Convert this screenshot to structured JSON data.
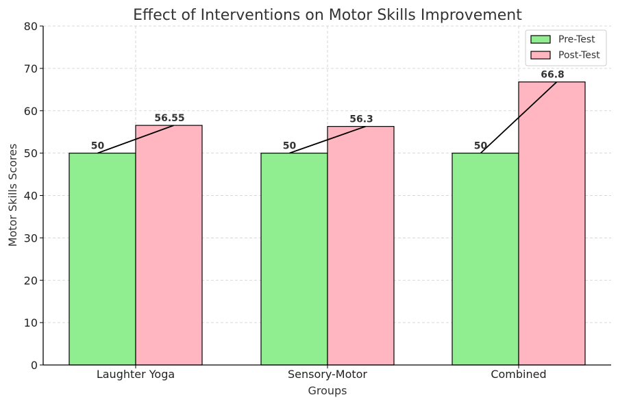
{
  "chart_data": {
    "type": "bar",
    "title": "Effect of Interventions on Motor Skills Improvement",
    "xlabel": "Groups",
    "ylabel": "Motor Skills Scores",
    "categories": [
      "Laughter Yoga",
      "Sensory-Motor",
      "Combined"
    ],
    "series": [
      {
        "name": "Pre-Test",
        "values": [
          50,
          50,
          50
        ],
        "color": "#90EE90"
      },
      {
        "name": "Post-Test",
        "values": [
          56.55,
          56.3,
          66.8
        ],
        "color": "#FFB6C1"
      }
    ],
    "data_labels": {
      "pre": [
        "50",
        "50",
        "50"
      ],
      "post": [
        "56.55",
        "56.3",
        "66.8"
      ]
    },
    "ylim": [
      0,
      80
    ],
    "yticks": [
      0,
      10,
      20,
      30,
      40,
      50,
      60,
      70,
      80
    ],
    "grid": true,
    "legend_position": "top-right",
    "connector_lines": true
  }
}
